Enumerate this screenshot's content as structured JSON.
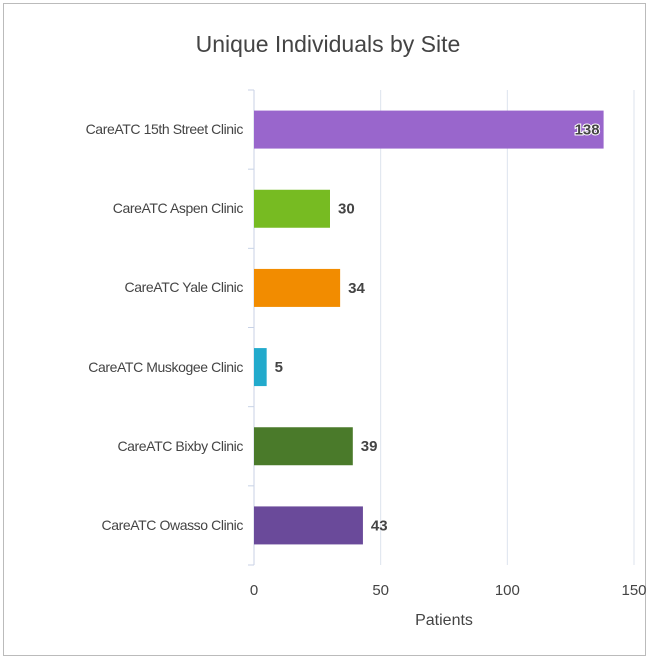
{
  "chart_data": {
    "type": "hbar",
    "title": "Unique Individuals by Site",
    "x_label": "Patients",
    "categories": [
      "CareATC 15th Street Clinic",
      "CareATC Aspen Clinic",
      "CareATC Yale Clinic",
      "CareATC Muskogee Clinic",
      "CareATC Bixby Clinic",
      "CareATC Owasso Clinic"
    ],
    "values": [
      138,
      30,
      34,
      5,
      39,
      43
    ],
    "colors": [
      "#9966cc",
      "#77bb22",
      "#f28c00",
      "#22aacc",
      "#4a7a2a",
      "#6a4a9a"
    ],
    "xlim": [
      0,
      150
    ],
    "xticks": [
      0,
      50,
      100,
      150
    ],
    "grid": true
  }
}
